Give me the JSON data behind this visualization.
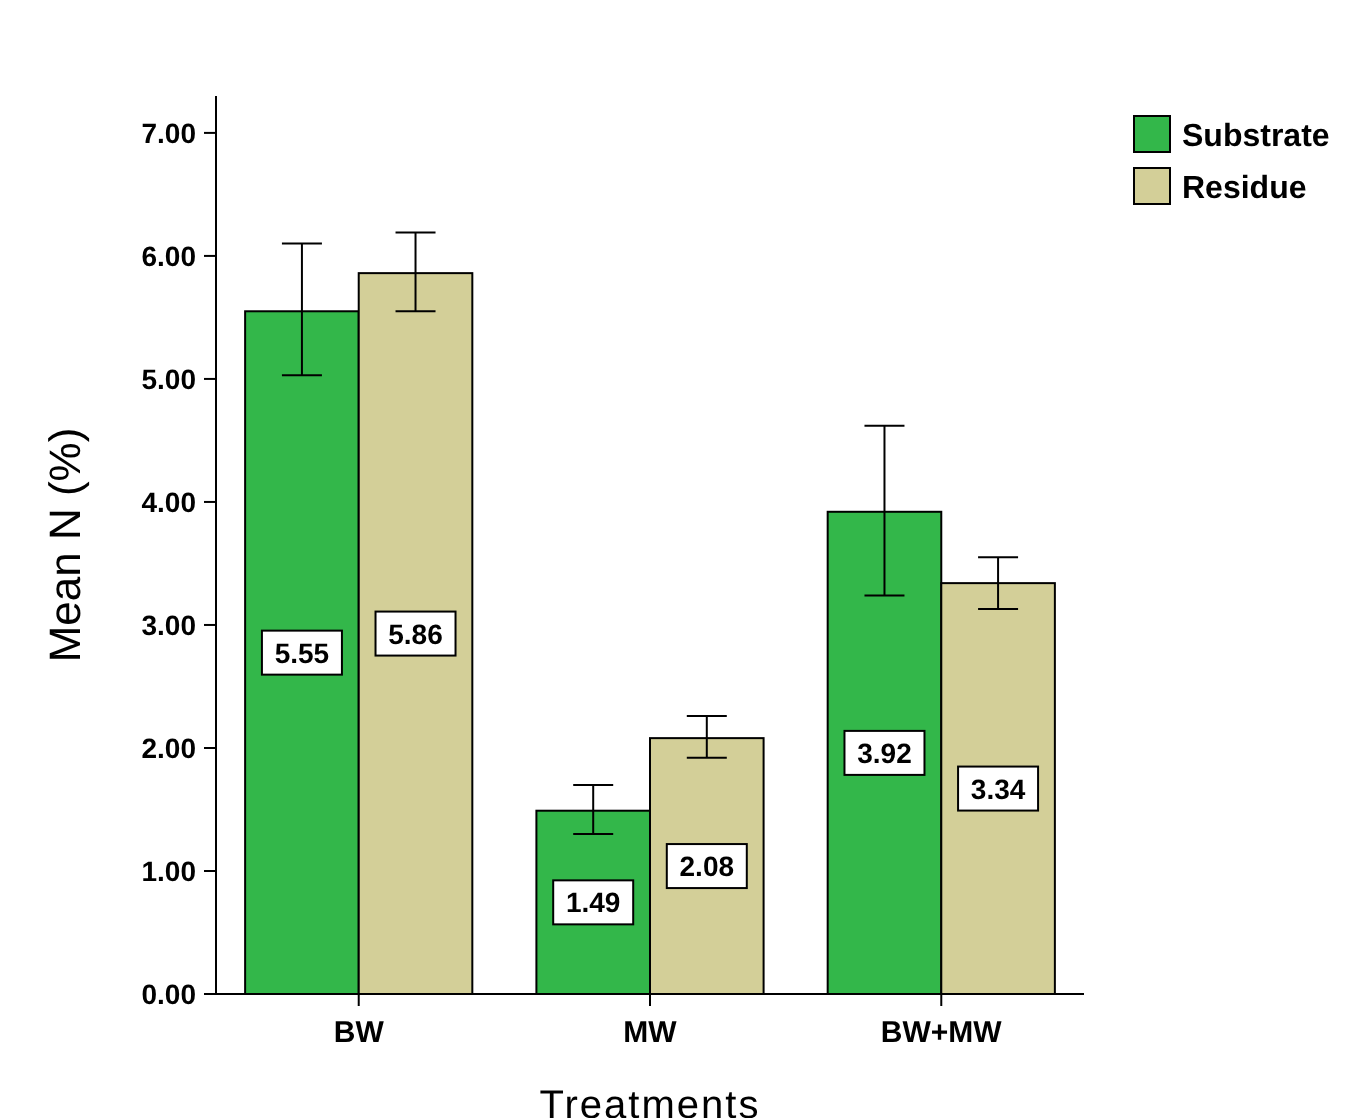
{
  "chart_data": {
    "type": "bar",
    "xlabel": "Treatments",
    "ylabel": "Mean N (%)",
    "categories": [
      "BW",
      "MW",
      "BW+MW"
    ],
    "series": [
      {
        "name": "Substrate",
        "color": "#33b74a",
        "values": [
          5.55,
          1.49,
          3.92
        ],
        "errors": [
          [
            5.03,
            6.1
          ],
          [
            1.3,
            1.7
          ],
          [
            3.24,
            4.62
          ]
        ]
      },
      {
        "name": "Residue",
        "color": "#d3cf98",
        "values": [
          5.86,
          2.08,
          3.34
        ],
        "errors": [
          [
            5.55,
            6.19
          ],
          [
            1.92,
            2.26
          ],
          [
            3.13,
            3.55
          ]
        ]
      }
    ],
    "ylim": [
      0,
      7.3
    ],
    "yticks": [
      {
        "value": 0,
        "label": "0.00"
      },
      {
        "value": 1,
        "label": "1.00"
      },
      {
        "value": 2,
        "label": "2.00"
      },
      {
        "value": 3,
        "label": "3.00"
      },
      {
        "value": 4,
        "label": "4.00"
      },
      {
        "value": 5,
        "label": "5.00"
      },
      {
        "value": 6,
        "label": "6.00"
      },
      {
        "value": 7,
        "label": "7.00"
      }
    ],
    "data_labels": true,
    "legend": "top right",
    "grid": false
  }
}
